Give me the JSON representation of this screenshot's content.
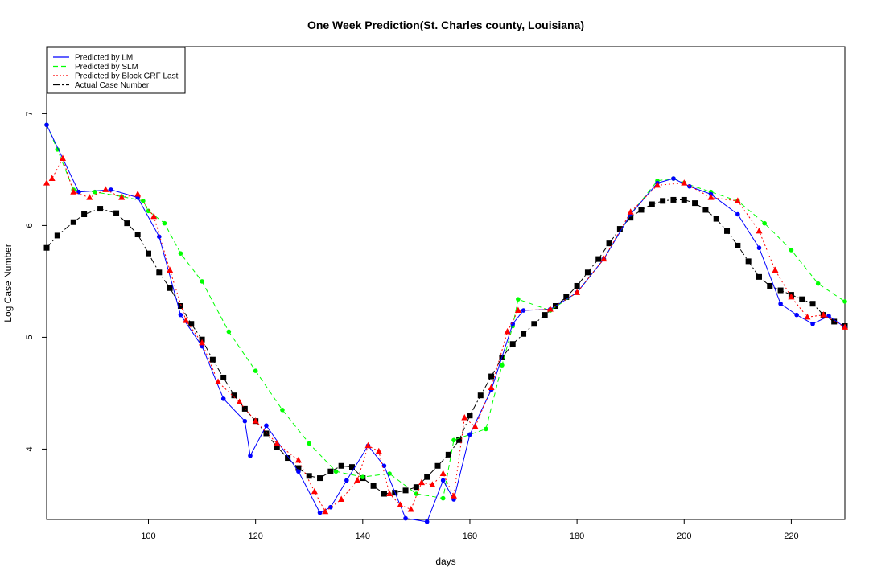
{
  "chart_data": {
    "type": "line",
    "title": "One Week Prediction(St. Charles county, Louisiana)",
    "xlabel": "days",
    "ylabel": "Log Case Number",
    "xlim": [
      81,
      230
    ],
    "ylim": [
      3.37,
      7.6
    ],
    "x_ticks": [
      100,
      120,
      140,
      160,
      180,
      200,
      220
    ],
    "y_ticks": [
      4,
      5,
      6,
      7
    ],
    "grid": false,
    "legend_position": "top-left",
    "series": [
      {
        "name": "Predicted by LM",
        "color": "#0000ff",
        "line_style": "solid",
        "marker": "circle",
        "x": [
          81,
          87,
          93,
          98,
          102,
          106,
          110,
          114,
          118,
          119,
          122,
          128,
          132,
          134,
          137,
          141,
          144,
          148,
          152,
          155,
          157,
          160,
          164,
          168,
          170,
          175,
          180,
          185,
          190,
          195,
          198,
          201,
          205,
          210,
          214,
          218,
          221,
          224,
          227,
          230
        ],
        "values": [
          6.9,
          6.3,
          6.32,
          6.25,
          5.9,
          5.2,
          4.92,
          4.45,
          4.25,
          3.94,
          4.21,
          3.8,
          3.43,
          3.48,
          3.72,
          4.03,
          3.85,
          3.38,
          3.35,
          3.72,
          3.55,
          4.13,
          4.53,
          5.12,
          5.24,
          5.25,
          5.4,
          5.7,
          6.1,
          6.38,
          6.42,
          6.35,
          6.28,
          6.1,
          5.8,
          5.3,
          5.2,
          5.12,
          5.19,
          5.09
        ]
      },
      {
        "name": "Predicted by SLM",
        "color": "#00ff00",
        "line_style": "dashed",
        "marker": "circle",
        "x": [
          81,
          83,
          86,
          90,
          95,
          99,
          100,
          103,
          106,
          110,
          115,
          120,
          125,
          130,
          135,
          140,
          145,
          150,
          155,
          157,
          160,
          163,
          166,
          168,
          169,
          175,
          180,
          185,
          190,
          195,
          198,
          200,
          205,
          210,
          215,
          220,
          225,
          230
        ],
        "values": [
          6.9,
          6.68,
          6.32,
          6.3,
          6.26,
          6.22,
          6.13,
          6.02,
          5.75,
          5.5,
          5.05,
          4.7,
          4.35,
          4.05,
          3.8,
          3.75,
          3.78,
          3.6,
          3.56,
          4.08,
          4.13,
          4.18,
          4.75,
          5.1,
          5.34,
          5.24,
          5.4,
          5.7,
          6.1,
          6.4,
          6.42,
          6.38,
          6.3,
          6.22,
          6.02,
          5.78,
          5.48,
          5.32
        ]
      },
      {
        "name": "Predicted by Block GRF Last",
        "color": "#ff0000",
        "line_style": "dotted",
        "marker": "triangle",
        "x": [
          81,
          82,
          84,
          86,
          89,
          92,
          95,
          98,
          101,
          104,
          107,
          110,
          113,
          117,
          120,
          124,
          128,
          131,
          133,
          136,
          139,
          141,
          143,
          145,
          147,
          149,
          151,
          153,
          155,
          157,
          159,
          161,
          164,
          167,
          169,
          175,
          180,
          185,
          190,
          195,
          200,
          205,
          210,
          214,
          217,
          220,
          223,
          226,
          230
        ],
        "values": [
          6.38,
          6.42,
          6.6,
          6.3,
          6.25,
          6.32,
          6.25,
          6.28,
          6.08,
          5.6,
          5.15,
          4.95,
          4.6,
          4.42,
          4.25,
          4.05,
          3.9,
          3.62,
          3.44,
          3.55,
          3.72,
          4.03,
          3.98,
          3.6,
          3.5,
          3.46,
          3.7,
          3.68,
          3.78,
          3.58,
          4.28,
          4.2,
          4.55,
          5.05,
          5.24,
          5.25,
          5.4,
          5.7,
          6.12,
          6.36,
          6.38,
          6.25,
          6.22,
          5.95,
          5.6,
          5.36,
          5.18,
          5.2,
          5.09
        ]
      },
      {
        "name": "Actual Case Number",
        "color": "#000000",
        "line_style": "dashdot",
        "marker": "square",
        "x": [
          81,
          83,
          86,
          88,
          91,
          94,
          96,
          98,
          100,
          102,
          104,
          106,
          108,
          110,
          112,
          114,
          116,
          118,
          120,
          122,
          124,
          126,
          128,
          130,
          132,
          134,
          136,
          138,
          140,
          142,
          144,
          146,
          148,
          150,
          152,
          154,
          156,
          158,
          160,
          162,
          164,
          166,
          168,
          170,
          172,
          174,
          176,
          178,
          180,
          182,
          184,
          186,
          188,
          190,
          192,
          194,
          196,
          198,
          200,
          202,
          204,
          206,
          208,
          210,
          212,
          214,
          216,
          218,
          220,
          222,
          224,
          226,
          228,
          230
        ],
        "values": [
          5.8,
          5.91,
          6.03,
          6.1,
          6.15,
          6.11,
          6.02,
          5.92,
          5.75,
          5.58,
          5.44,
          5.28,
          5.12,
          4.98,
          4.8,
          4.64,
          4.48,
          4.36,
          4.25,
          4.14,
          4.02,
          3.92,
          3.83,
          3.76,
          3.74,
          3.8,
          3.85,
          3.84,
          3.74,
          3.67,
          3.6,
          3.61,
          3.63,
          3.66,
          3.75,
          3.85,
          3.95,
          4.08,
          4.3,
          4.48,
          4.65,
          4.82,
          4.94,
          5.03,
          5.12,
          5.2,
          5.28,
          5.36,
          5.46,
          5.58,
          5.7,
          5.84,
          5.97,
          6.07,
          6.14,
          6.19,
          6.22,
          6.23,
          6.23,
          6.2,
          6.14,
          6.06,
          5.95,
          5.82,
          5.68,
          5.54,
          5.46,
          5.42,
          5.38,
          5.34,
          5.3,
          5.2,
          5.14,
          5.1
        ]
      }
    ]
  }
}
